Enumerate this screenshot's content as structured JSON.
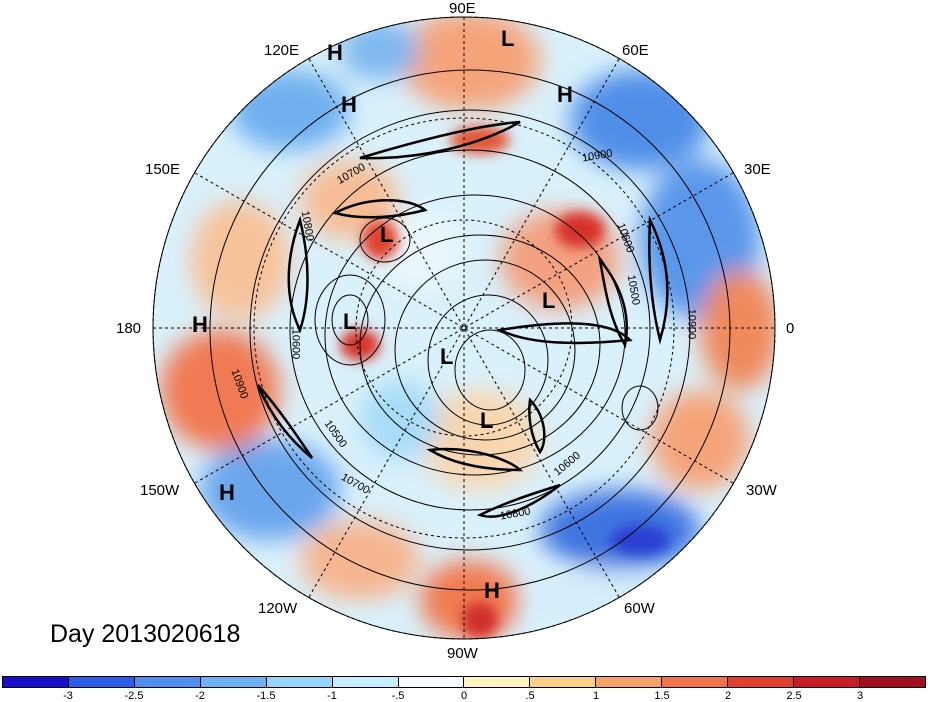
{
  "title": "Day 2013020618",
  "longitude_labels": {
    "n90e": "90E",
    "n120e": "120E",
    "n60e": "60E",
    "n150e": "150E",
    "n30e": "30E",
    "n180": "180",
    "n0": "0",
    "n150w": "150W",
    "n30w": "30W",
    "n120w": "120W",
    "n60w": "60W",
    "n90w": "90W"
  },
  "pressure_centers": [
    {
      "name": "H",
      "key": "h1"
    },
    {
      "name": "L",
      "key": "l1"
    },
    {
      "name": "H",
      "key": "h2"
    },
    {
      "name": "H",
      "key": "h3"
    },
    {
      "name": "L",
      "key": "l2"
    },
    {
      "name": "L",
      "key": "l3"
    },
    {
      "name": "H",
      "key": "h4"
    },
    {
      "name": "L",
      "key": "l4"
    },
    {
      "name": "L",
      "key": "l5"
    },
    {
      "name": "L",
      "key": "l6"
    },
    {
      "name": "H",
      "key": "h5"
    },
    {
      "name": "H",
      "key": "h6"
    }
  ],
  "contour_labels": [
    "10900",
    "10600",
    "10500",
    "10700",
    "10800",
    "10900",
    "10600",
    "10900",
    "10600",
    "10500",
    "10700",
    "10800"
  ],
  "colorbar": {
    "colors": [
      "#1a0fc8",
      "#2a5ee6",
      "#4f8df0",
      "#6eb2f5",
      "#96d5fa",
      "#c5edfd",
      "#f6fbff",
      "#fdf2c0",
      "#fbd28a",
      "#f6a36a",
      "#f07349",
      "#e2402f",
      "#c81d27",
      "#a00f20"
    ],
    "ticks": [
      "-3",
      "-2.5",
      "-2",
      "-1.5",
      "-1",
      "-.5",
      "0",
      ".5",
      "1",
      "1.5",
      "2",
      "2.5",
      "3"
    ]
  }
}
